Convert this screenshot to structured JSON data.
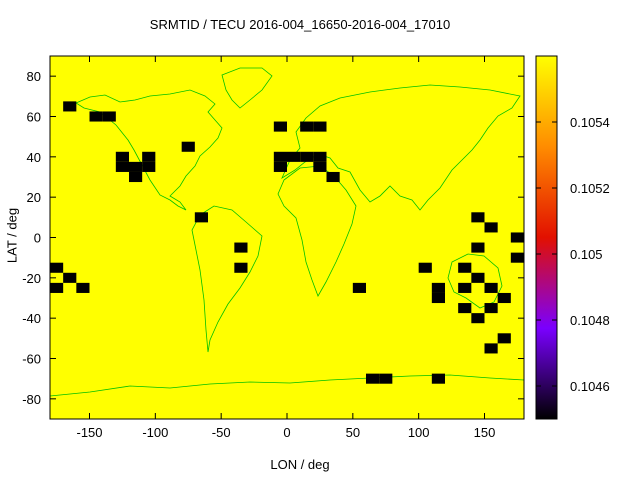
{
  "chart_data": {
    "type": "heatmap",
    "title": "SRMTID / TECU 2016-004_16650-2016-004_17010",
    "xlabel": "LON / deg",
    "ylabel": "LAT / deg",
    "xlim": [
      -180,
      180
    ],
    "ylim": [
      -90,
      90
    ],
    "x_ticks": [
      -150,
      -100,
      -50,
      0,
      50,
      100,
      150
    ],
    "y_ticks": [
      -80,
      -60,
      -40,
      -20,
      0,
      20,
      40,
      60,
      80
    ],
    "colorbar": {
      "range": [
        0.1045,
        0.1056
      ],
      "ticks": [
        0.1046,
        0.1048,
        0.105,
        0.1052,
        0.1054
      ],
      "palette": [
        "#000000",
        "#7a00ff",
        "#e21000",
        "#ff8c00",
        "#ffff00"
      ]
    },
    "background_value": 0.10558,
    "background_color": "#ffff00",
    "cell_size_deg": [
      10,
      5
    ],
    "cell_value": 0.10451,
    "cell_color": "#000000",
    "coastline_color": "#00c000",
    "cells": [
      [
        -165,
        65
      ],
      [
        -145,
        60
      ],
      [
        -135,
        60
      ],
      [
        -125,
        40
      ],
      [
        -125,
        35
      ],
      [
        -115,
        35
      ],
      [
        -115,
        30
      ],
      [
        -105,
        40
      ],
      [
        -105,
        35
      ],
      [
        -75,
        45
      ],
      [
        -65,
        10
      ],
      [
        -35,
        -5
      ],
      [
        -35,
        -15
      ],
      [
        -175,
        -15
      ],
      [
        -175,
        -25
      ],
      [
        -165,
        -20
      ],
      [
        -155,
        -25
      ],
      [
        -5,
        55
      ],
      [
        -5,
        40
      ],
      [
        -5,
        35
      ],
      [
        5,
        40
      ],
      [
        15,
        55
      ],
      [
        15,
        40
      ],
      [
        25,
        55
      ],
      [
        25,
        40
      ],
      [
        25,
        35
      ],
      [
        35,
        30
      ],
      [
        55,
        -25
      ],
      [
        65,
        -70
      ],
      [
        75,
        -70
      ],
      [
        105,
        -15
      ],
      [
        115,
        -25
      ],
      [
        115,
        -30
      ],
      [
        115,
        -70
      ],
      [
        135,
        -15
      ],
      [
        135,
        -25
      ],
      [
        135,
        -35
      ],
      [
        145,
        10
      ],
      [
        145,
        -5
      ],
      [
        145,
        -20
      ],
      [
        145,
        -40
      ],
      [
        155,
        5
      ],
      [
        155,
        -25
      ],
      [
        155,
        -35
      ],
      [
        155,
        -55
      ],
      [
        165,
        -30
      ],
      [
        165,
        -50
      ],
      [
        175,
        0
      ],
      [
        175,
        -10
      ]
    ]
  }
}
